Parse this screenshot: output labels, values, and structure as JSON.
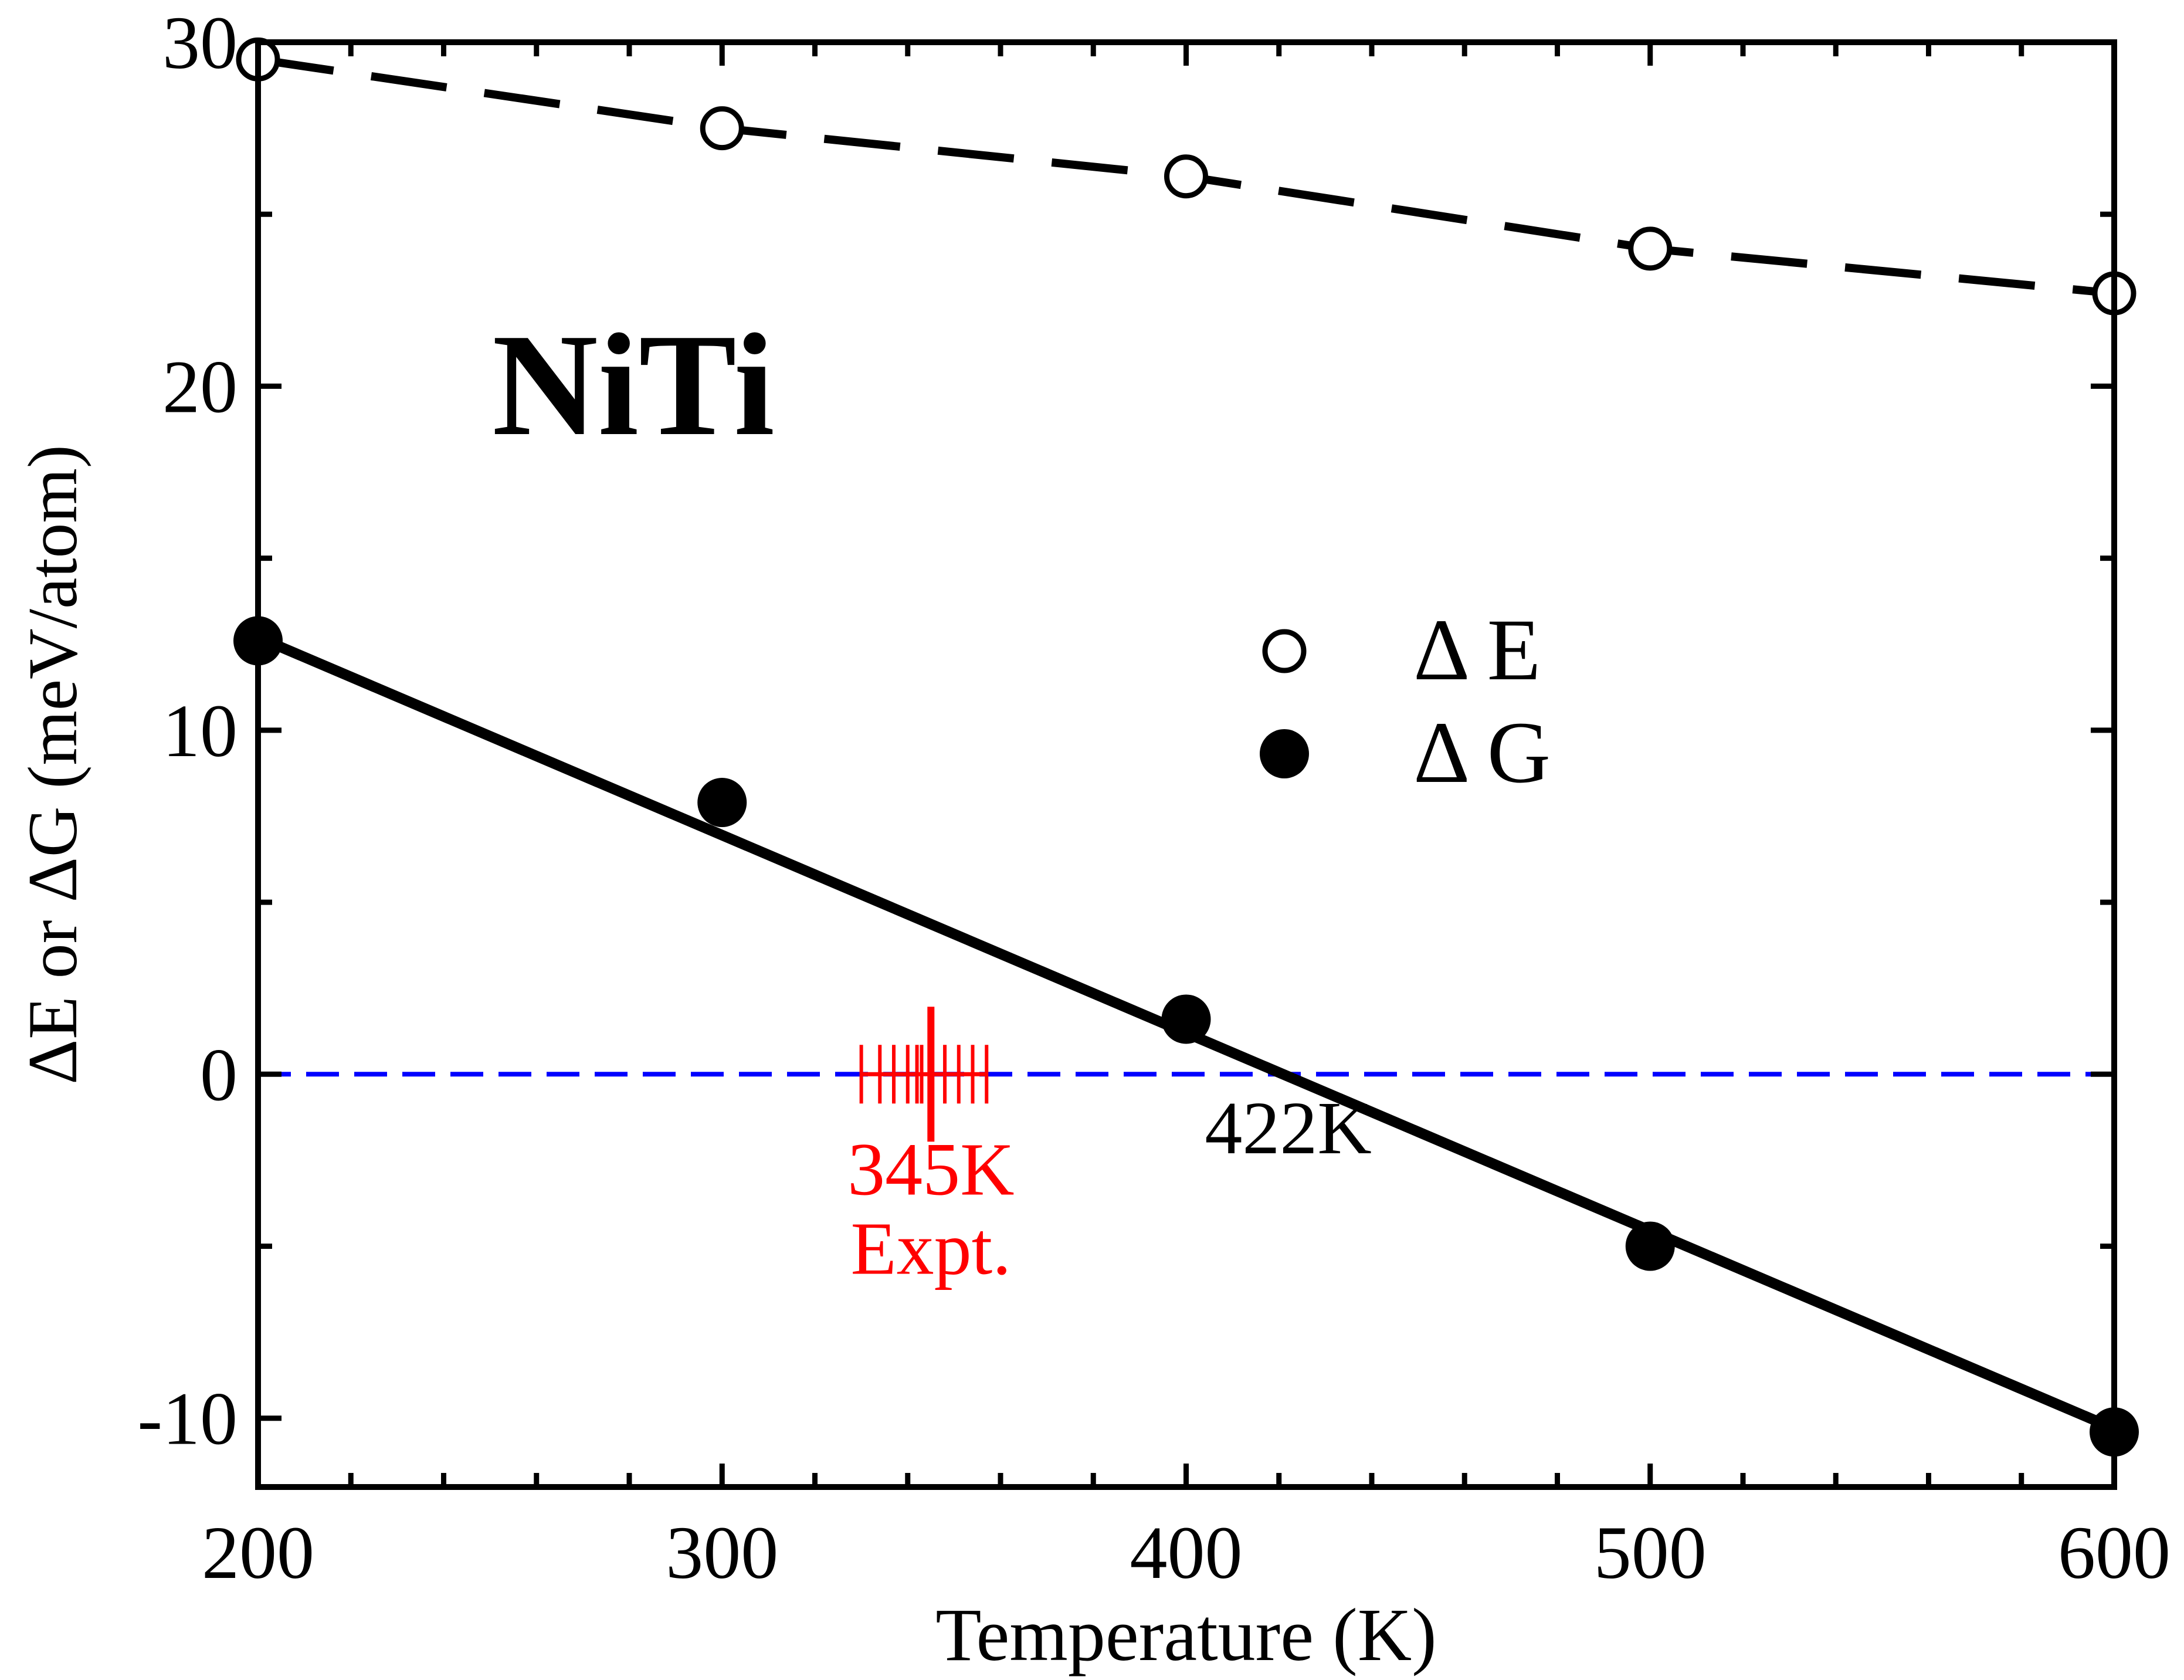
{
  "chart_data": {
    "type": "line",
    "annotation_title": "NiTi",
    "xlabel": "Temperature (K)",
    "ylabel": "ΔE or ΔG (meV/atom)",
    "xlim": [
      200,
      600
    ],
    "ylim": [
      -12,
      30
    ],
    "xticks": [
      200,
      300,
      400,
      500,
      600
    ],
    "xtick_labels": [
      "200",
      "300",
      "400",
      "500",
      "600"
    ],
    "yticks": [
      -10,
      0,
      10,
      20,
      30
    ],
    "ytick_labels": [
      "-10",
      "0",
      "10",
      "20",
      "30"
    ],
    "x": [
      200,
      300,
      400,
      500,
      600
    ],
    "series": [
      {
        "name": "Δ E",
        "values": [
          29.5,
          27.5,
          26.1,
          24.0,
          22.7
        ],
        "marker": "open-circle",
        "line": "dashed",
        "color": "#000000"
      },
      {
        "name": "Δ G",
        "values": [
          12.6,
          7.9,
          1.6,
          -5.0,
          -10.4
        ],
        "marker": "filled-circle",
        "line": "solid",
        "color": "#000000",
        "fit": {
          "x": [
            200,
            600
          ],
          "y": [
            12.7,
            -10.3
          ]
        }
      }
    ],
    "zero_line": {
      "y": 0,
      "color": "#0000ff",
      "style": "dashed"
    },
    "expt_marks": {
      "color": "#ff0000",
      "x": [
        330,
        334,
        337,
        340,
        342,
        343,
        345,
        348,
        351,
        354,
        357
      ],
      "main_x": 345
    },
    "annotations": [
      {
        "text": "422K",
        "x": 422,
        "y": -2.3,
        "color": "#000000"
      },
      {
        "text": "345K",
        "x": 345,
        "y": -3.5,
        "color": "#ff0000"
      },
      {
        "text": "Expt.",
        "x": 345,
        "y": -5.8,
        "color": "#ff0000"
      }
    ],
    "legend_position": "middle-right",
    "grid": false
  }
}
